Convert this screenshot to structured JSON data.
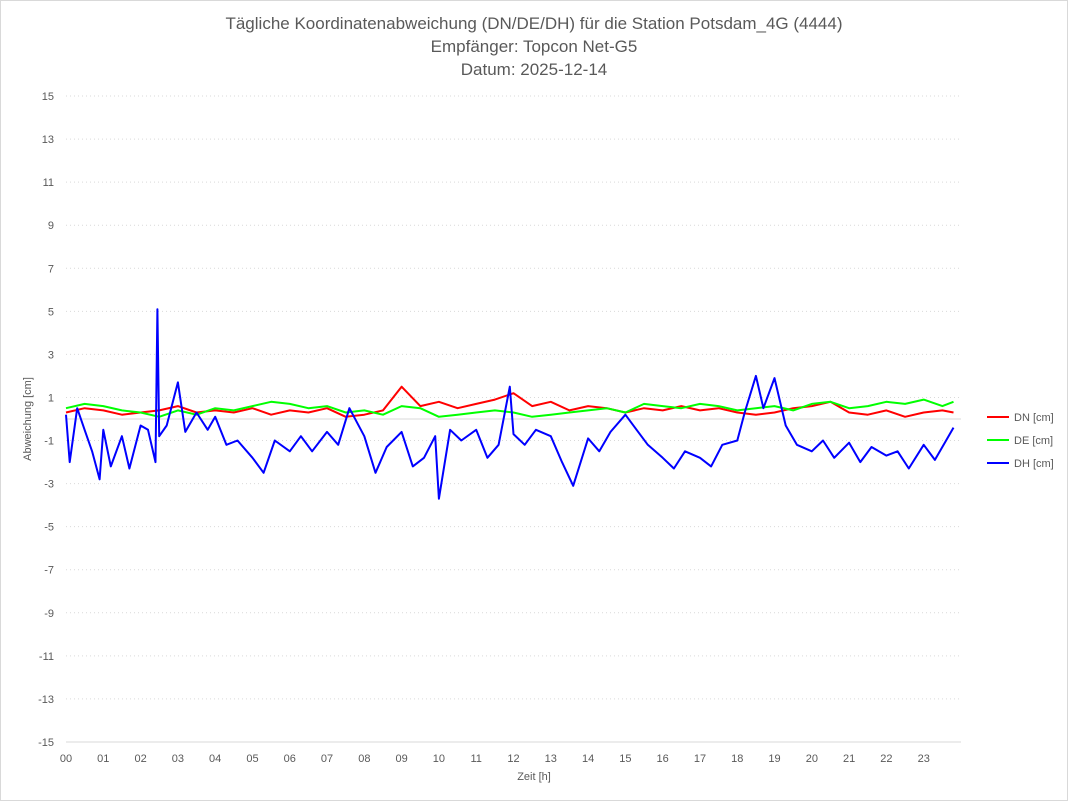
{
  "chart_data": {
    "type": "line",
    "title": [
      "Tägliche Koordinatenabweichung (DN/DE/DH) für die Station Potsdam_4G (4444)",
      "Empfänger: Topcon Net-G5",
      "Datum: 2025-12-14"
    ],
    "xlabel": "Zeit [h]",
    "ylabel": "Abweichung [cm]",
    "xlim": [
      0,
      24
    ],
    "ylim": [
      -15,
      15
    ],
    "x_ticks": [
      "00",
      "01",
      "02",
      "03",
      "04",
      "05",
      "06",
      "07",
      "08",
      "09",
      "10",
      "11",
      "12",
      "13",
      "14",
      "15",
      "16",
      "17",
      "18",
      "19",
      "20",
      "21",
      "22",
      "23"
    ],
    "y_ticks": [
      15,
      13,
      11,
      9,
      7,
      5,
      3,
      1,
      -1,
      -3,
      -5,
      -7,
      -9,
      -11,
      -13,
      -15
    ],
    "grid": "horizontal dotted",
    "legend_position": "right",
    "series": [
      {
        "name": "DN [cm]",
        "color": "#ff0000",
        "x": [
          0,
          0.5,
          1,
          1.5,
          2,
          2.5,
          3,
          3.5,
          4,
          4.5,
          5,
          5.5,
          6,
          6.5,
          7,
          7.5,
          8,
          8.5,
          9,
          9.5,
          10,
          10.5,
          11,
          11.5,
          12,
          12.5,
          13,
          13.5,
          14,
          14.5,
          15,
          15.5,
          16,
          16.5,
          17,
          17.5,
          18,
          18.5,
          19,
          19.5,
          20,
          20.5,
          21,
          21.5,
          22,
          22.5,
          23,
          23.5,
          23.8
        ],
        "values": [
          0.3,
          0.5,
          0.4,
          0.2,
          0.3,
          0.4,
          0.6,
          0.3,
          0.4,
          0.3,
          0.5,
          0.2,
          0.4,
          0.3,
          0.5,
          0.1,
          0.2,
          0.4,
          1.5,
          0.6,
          0.8,
          0.5,
          0.7,
          0.9,
          1.2,
          0.6,
          0.8,
          0.4,
          0.6,
          0.5,
          0.3,
          0.5,
          0.4,
          0.6,
          0.4,
          0.5,
          0.3,
          0.2,
          0.3,
          0.5,
          0.6,
          0.8,
          0.3,
          0.2,
          0.4,
          0.1,
          0.3,
          0.4,
          0.3
        ]
      },
      {
        "name": "DE [cm]",
        "color": "#00ff00",
        "x": [
          0,
          0.5,
          1,
          1.5,
          2,
          2.5,
          3,
          3.5,
          4,
          4.5,
          5,
          5.5,
          6,
          6.5,
          7,
          7.5,
          8,
          8.5,
          9,
          9.5,
          10,
          10.5,
          11,
          11.5,
          12,
          12.5,
          13,
          13.5,
          14,
          14.5,
          15,
          15.5,
          16,
          16.5,
          17,
          17.5,
          18,
          18.5,
          19,
          19.5,
          20,
          20.5,
          21,
          21.5,
          22,
          22.5,
          23,
          23.5,
          23.8
        ],
        "values": [
          0.5,
          0.7,
          0.6,
          0.4,
          0.3,
          0.1,
          0.4,
          0.2,
          0.5,
          0.4,
          0.6,
          0.8,
          0.7,
          0.5,
          0.6,
          0.3,
          0.4,
          0.2,
          0.6,
          0.5,
          0.1,
          0.2,
          0.3,
          0.4,
          0.3,
          0.1,
          0.2,
          0.3,
          0.4,
          0.5,
          0.3,
          0.7,
          0.6,
          0.5,
          0.7,
          0.6,
          0.4,
          0.5,
          0.6,
          0.4,
          0.7,
          0.8,
          0.5,
          0.6,
          0.8,
          0.7,
          0.9,
          0.6,
          0.8
        ]
      },
      {
        "name": "DH [cm]",
        "color": "#0000ff",
        "x": [
          0,
          0.1,
          0.3,
          0.5,
          0.7,
          0.9,
          1,
          1.2,
          1.5,
          1.7,
          2,
          2.2,
          2.4,
          2.45,
          2.5,
          2.7,
          3,
          3.2,
          3.5,
          3.8,
          4,
          4.3,
          4.6,
          5,
          5.3,
          5.6,
          6,
          6.3,
          6.6,
          7,
          7.3,
          7.6,
          8,
          8.3,
          8.6,
          9,
          9.3,
          9.6,
          9.9,
          10,
          10.3,
          10.6,
          11,
          11.3,
          11.6,
          11.9,
          12,
          12.3,
          12.6,
          13,
          13.3,
          13.6,
          14,
          14.3,
          14.6,
          15,
          15.3,
          15.6,
          16,
          16.3,
          16.6,
          17,
          17.3,
          17.6,
          18,
          18.2,
          18.5,
          18.7,
          19,
          19.3,
          19.6,
          20,
          20.3,
          20.6,
          21,
          21.3,
          21.6,
          22,
          22.3,
          22.6,
          23,
          23.3,
          23.6,
          23.8
        ],
        "values": [
          0.2,
          -2,
          0.5,
          -0.5,
          -1.5,
          -2.8,
          -0.5,
          -2.2,
          -0.8,
          -2.3,
          -0.3,
          -0.5,
          -2,
          5.1,
          -0.8,
          -0.3,
          1.7,
          -0.6,
          0.3,
          -0.5,
          0.1,
          -1.2,
          -1,
          -1.8,
          -2.5,
          -1,
          -1.5,
          -0.8,
          -1.5,
          -0.6,
          -1.2,
          0.5,
          -0.8,
          -2.5,
          -1.3,
          -0.6,
          -2.2,
          -1.8,
          -0.8,
          -3.7,
          -0.5,
          -1,
          -0.5,
          -1.8,
          -1.2,
          1.5,
          -0.7,
          -1.2,
          -0.5,
          -0.8,
          -2,
          -3.1,
          -0.9,
          -1.5,
          -0.6,
          0.2,
          -0.5,
          -1.2,
          -1.8,
          -2.3,
          -1.5,
          -1.8,
          -2.2,
          -1.2,
          -1,
          0.3,
          2,
          0.5,
          1.9,
          -0.3,
          -1.2,
          -1.5,
          -1,
          -1.8,
          -1.1,
          -2,
          -1.3,
          -1.7,
          -1.5,
          -2.3,
          -1.2,
          -1.9,
          -1,
          -0.4
        ]
      }
    ]
  }
}
